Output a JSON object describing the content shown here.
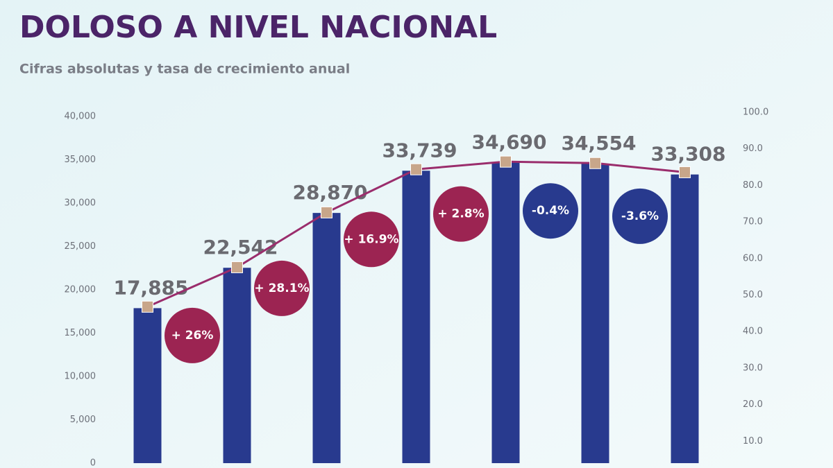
{
  "chart_data": {
    "type": "bar",
    "title": "DOLOSO A NIVEL NACIONAL",
    "subtitle": "Cifras absolutas y tasa de crecimiento anual",
    "series": [
      {
        "color": "#283a8e",
        "values": [
          17885,
          22542,
          28870,
          33739,
          34690,
          34554,
          33308
        ],
        "value_labels": [
          "17,885",
          "22,542",
          "28,870",
          "33,739",
          "34,690",
          "34,554",
          "33,308"
        ]
      },
      {
        "color": "#9a2d6c",
        "axis": "y2",
        "values": [
          46.8,
          57.6,
          72.6,
          84.4,
          86.5,
          86.1,
          83.6
        ]
      }
    ],
    "growth": {
      "values": [
        26,
        28.1,
        16.9,
        2.8,
        -0.4,
        -3.6
      ],
      "value_labels": [
        "+ 26%",
        "+ 28.1%",
        "+ 16.9%",
        "+ 2.8%",
        "-0.4%",
        "-3.6%"
      ],
      "positive_color": "#9c2452",
      "negative_color": "#283a8e"
    },
    "ylim": [
      0,
      40000
    ],
    "yticks": [
      0,
      {
        "value": 5000,
        "label": "5,000"
      },
      {
        "value": 10000,
        "label": "10,000"
      },
      {
        "value": 15000,
        "label": "15,000"
      },
      {
        "value": 20000,
        "label": "20,000"
      },
      {
        "value": 25000,
        "label": "25,000"
      },
      {
        "value": 30000,
        "label": "30,000"
      },
      {
        "value": 35000,
        "label": "35,000"
      },
      {
        "value": 40000,
        "label": "40,000"
      }
    ],
    "y2lim": [
      0,
      100
    ],
    "y2ticks": [
      {
        "value": 10,
        "label": "10.0"
      },
      {
        "value": 20,
        "label": "20.0"
      },
      {
        "value": 30,
        "label": "30.0"
      },
      {
        "value": 40,
        "label": "40.0"
      },
      {
        "value": 50,
        "label": "50.0"
      },
      {
        "value": 60,
        "label": "60.0"
      },
      {
        "value": 70,
        "label": "70.0"
      },
      {
        "value": 80,
        "label": "80.0"
      },
      {
        "value": 90,
        "label": "90.0"
      },
      {
        "value": 100,
        "label": "100.0"
      }
    ],
    "marker_color": "#c8a68a"
  }
}
